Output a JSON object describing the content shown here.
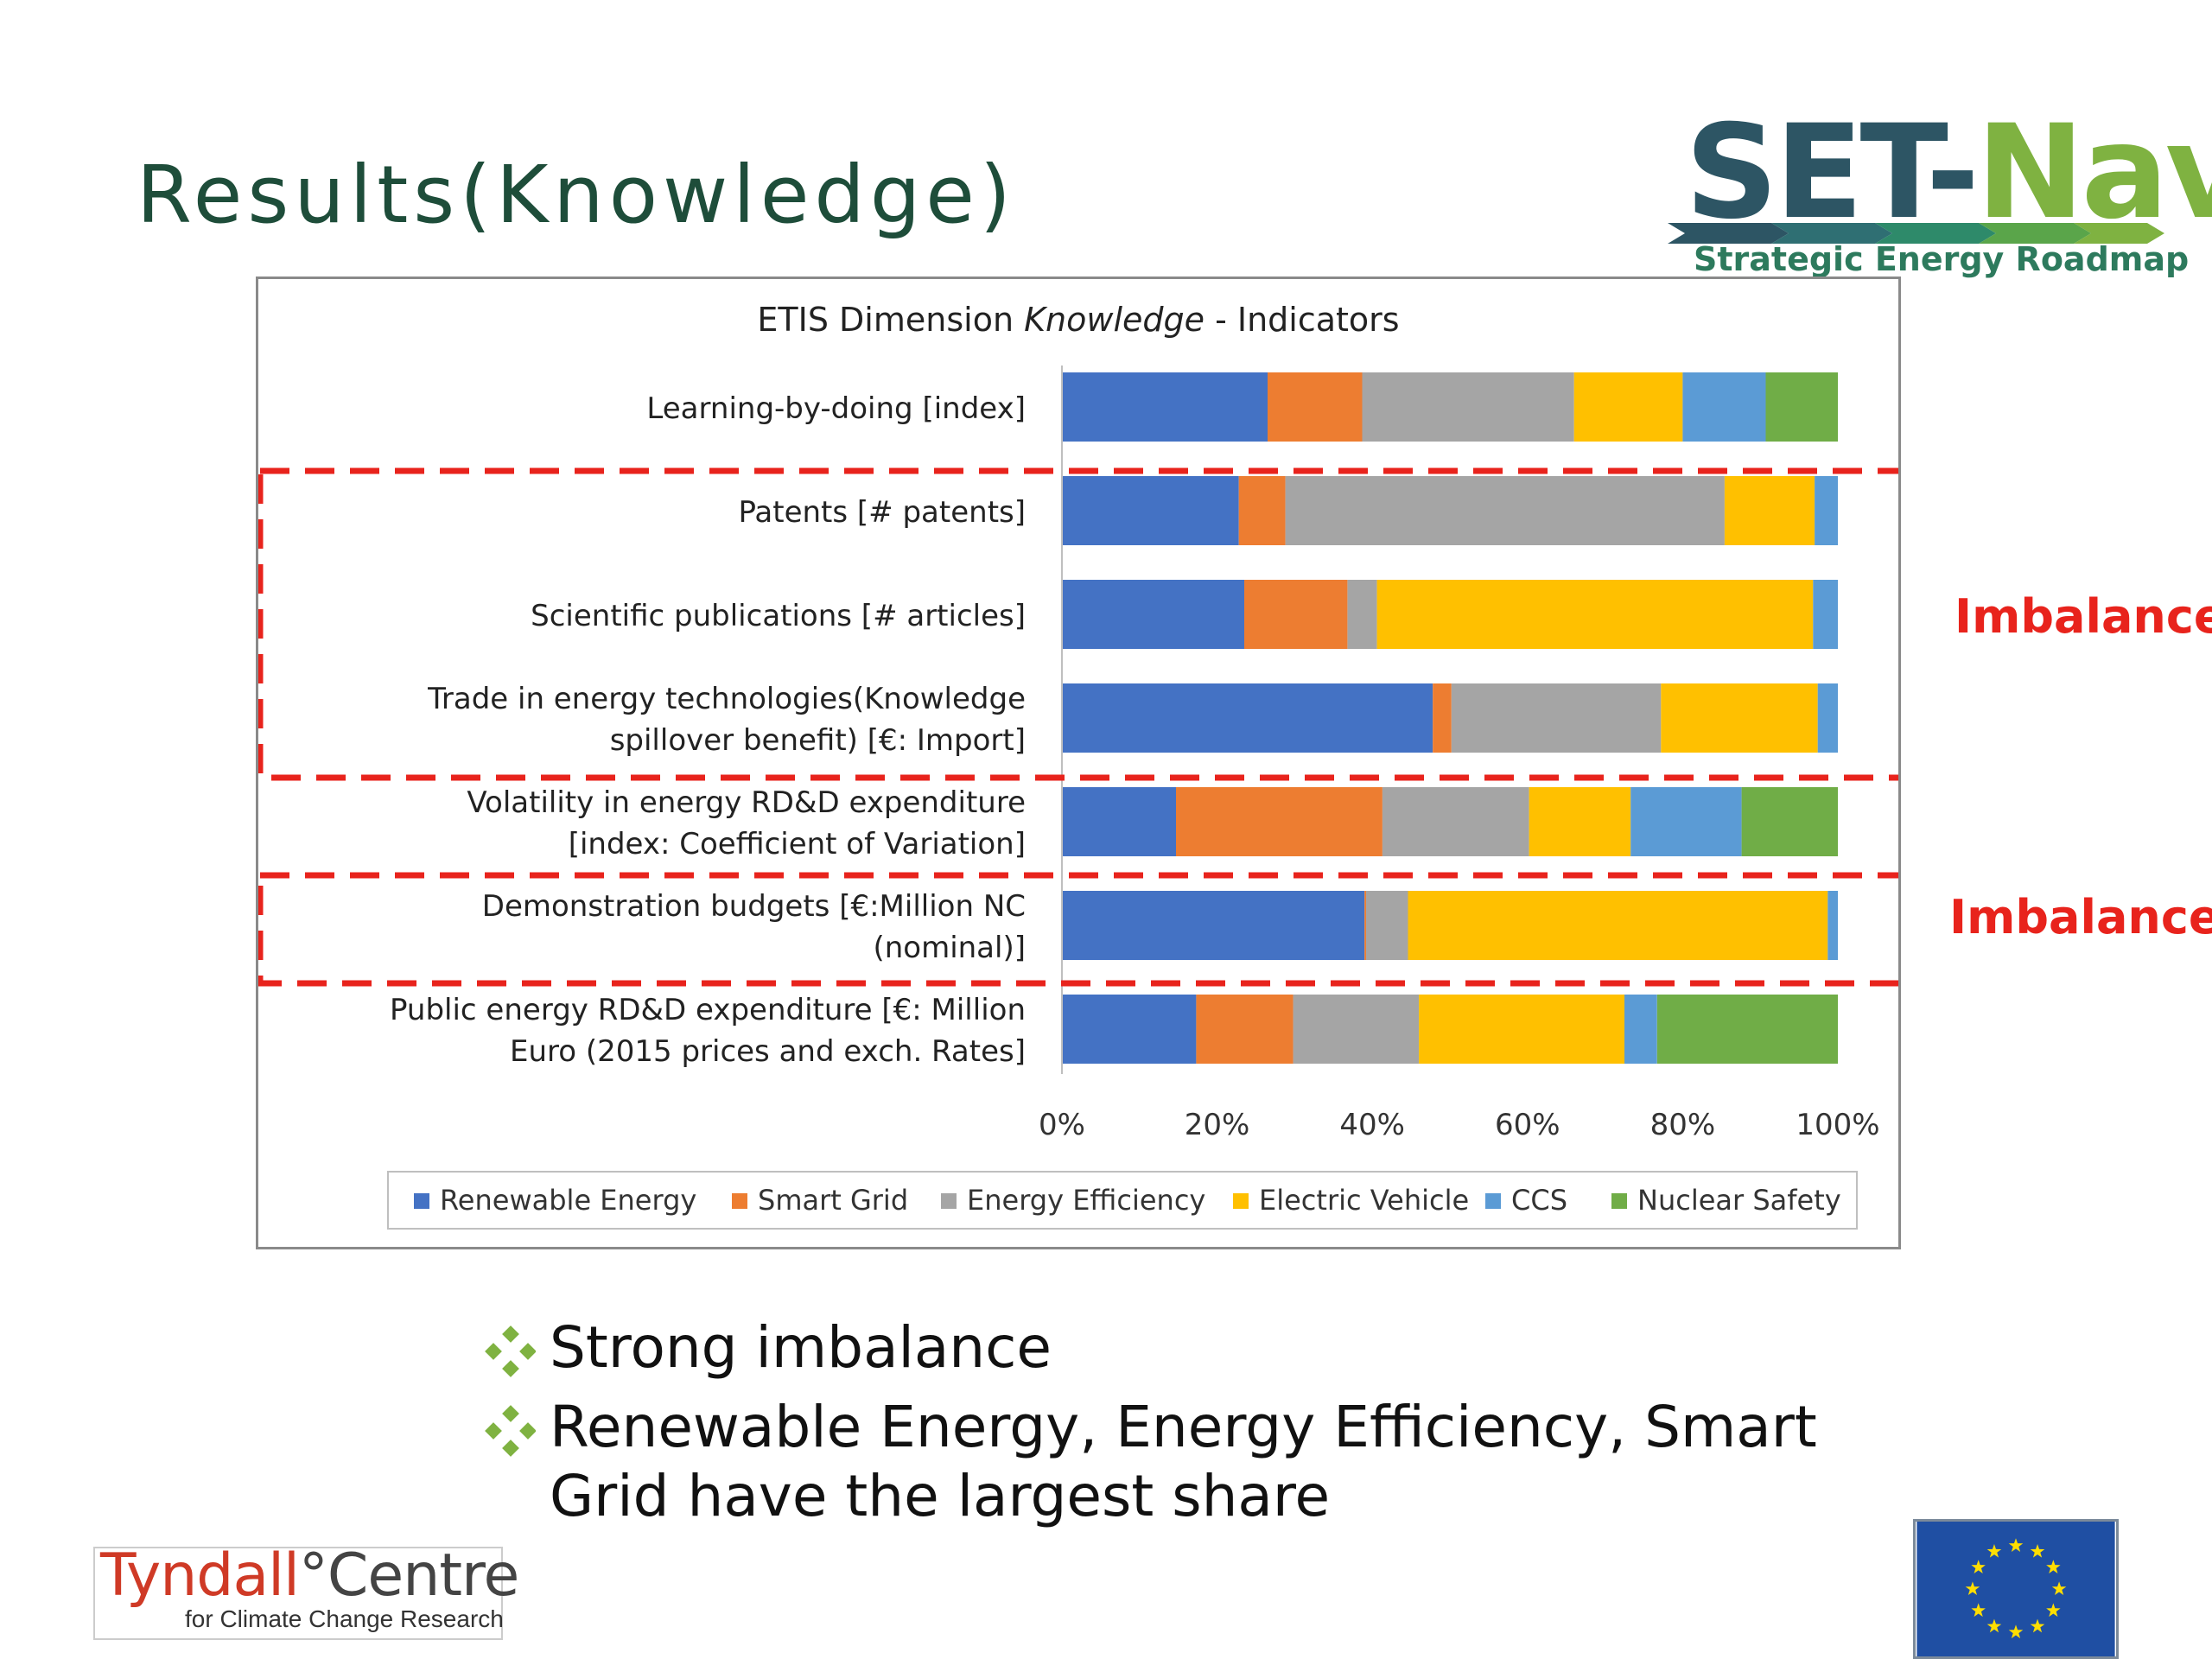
{
  "slide": {
    "title": "Results(Knowledge)",
    "logo": {
      "brand_set": "SET-",
      "brand_nav": "Nav",
      "tagline": "Strategic Energy Roadmap"
    },
    "annotations": [
      "Imbalance",
      "Imbalance"
    ],
    "bullets": [
      "Strong imbalance",
      "Renewable Energy, Energy Efficiency, Smart Grid have the largest share"
    ],
    "footer_logo": {
      "name": "Tyndall",
      "degree": "°",
      "name2": "Centre",
      "sub": "for Climate Change Research"
    },
    "colors": {
      "title": "#1e4d3a",
      "annotation": "#e8231c",
      "bullet_icon": "#7fb241"
    }
  },
  "chart_data": {
    "type": "bar",
    "orientation": "horizontal",
    "stacked": "percent",
    "title_prefix": "ETIS Dimension ",
    "title_italic": "Knowledge",
    "title_suffix": " - Indicators",
    "categories": [
      "Learning-by-doing [index]",
      "Patents [# patents]",
      "Scientific publications [# articles]",
      "Trade in energy technologies(Knowledge spillover benefit) [€: Import]",
      "Volatility in energy RD&D expenditure [index: Coefficient of Variation]",
      "Demonstration budgets [€:Million NC (nominal)]",
      "Public energy RD&D expenditure [€: Million Euro (2015 prices and exch. Rates]"
    ],
    "category_lines": [
      [
        "Learning-by-doing [index]"
      ],
      [
        "Patents [# patents]"
      ],
      [
        "Scientific publications [# articles]"
      ],
      [
        "Trade in energy technologies(Knowledge",
        "spillover benefit) [€: Import]"
      ],
      [
        "Volatility in energy RD&D expenditure",
        "[index: Coefficient of Variation]"
      ],
      [
        "Demonstration budgets [€:Million NC",
        "(nominal)]"
      ],
      [
        "Public energy RD&D expenditure [€: Million",
        "Euro (2015 prices and exch. Rates]"
      ]
    ],
    "series": [
      {
        "name": "Renewable Energy",
        "color": "#4472c4",
        "values": [
          26.5,
          22.8,
          23.5,
          47.8,
          14.7,
          39.0,
          17.3
        ]
      },
      {
        "name": "Smart Grid",
        "color": "#ed7d31",
        "values": [
          12.2,
          6.0,
          13.3,
          2.4,
          26.6,
          0.2,
          12.5
        ]
      },
      {
        "name": "Energy Efficiency",
        "color": "#a5a5a5",
        "values": [
          27.3,
          56.6,
          3.8,
          27.0,
          18.9,
          5.4,
          16.2
        ]
      },
      {
        "name": "Electric Vehicle",
        "color": "#ffc000",
        "values": [
          14.0,
          11.6,
          56.2,
          20.2,
          13.1,
          54.1,
          26.5
        ]
      },
      {
        "name": "CCS",
        "color": "#5b9bd5",
        "values": [
          10.7,
          3.0,
          3.2,
          2.6,
          14.3,
          1.3,
          4.2
        ]
      },
      {
        "name": "Nuclear Safety",
        "color": "#70ad47",
        "values": [
          9.3,
          0.0,
          0.0,
          0.0,
          12.4,
          0.0,
          23.3
        ]
      }
    ],
    "x_ticks": [
      "0%",
      "20%",
      "40%",
      "60%",
      "80%",
      "100%"
    ],
    "xlim": [
      0,
      100
    ],
    "grid": false,
    "legend_position": "bottom",
    "highlight_boxes": [
      {
        "categories": [
          1,
          2,
          3
        ],
        "label": "Imbalance"
      },
      {
        "categories": [
          5
        ],
        "label": "Imbalance"
      }
    ]
  }
}
